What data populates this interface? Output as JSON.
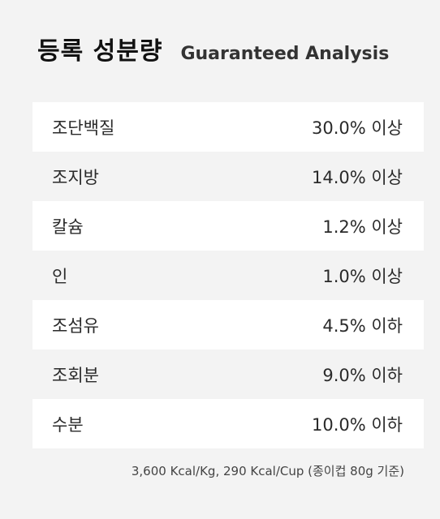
{
  "header": {
    "title_ko": "등록 성분량",
    "title_en": "Guaranteed Analysis"
  },
  "rows": [
    {
      "name": "조단백질",
      "value": "30.0% 이상"
    },
    {
      "name": "조지방",
      "value": "14.0% 이상"
    },
    {
      "name": "칼슘",
      "value": "1.2% 이상"
    },
    {
      "name": "인",
      "value": "1.0% 이상"
    },
    {
      "name": "조섬유",
      "value": "4.5% 이하"
    },
    {
      "name": "조회분",
      "value": "9.0% 이하"
    },
    {
      "name": "수분",
      "value": "10.0% 이하"
    }
  ],
  "note": "3,600 Kcal/Kg, 290 Kcal/Cup (종이컵 80g 기준)"
}
